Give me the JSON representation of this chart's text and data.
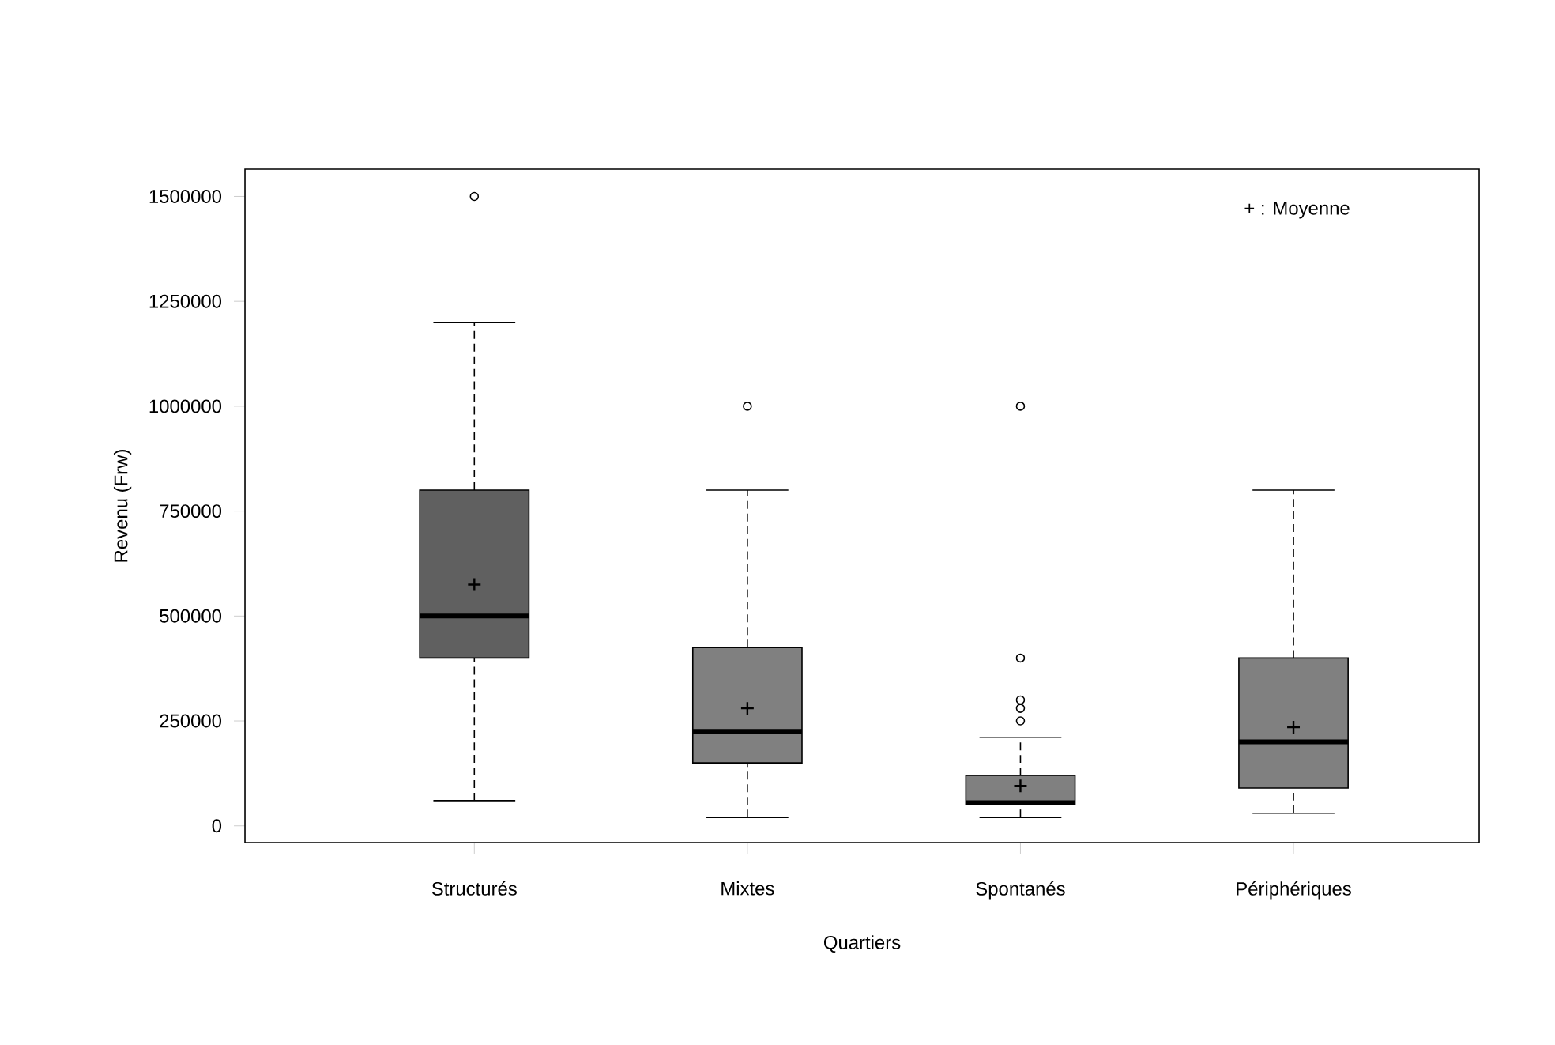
{
  "chart_data": {
    "type": "box",
    "xlabel": "Quartiers",
    "ylabel": "Revenu (Frw)",
    "categories": [
      "Structurés",
      "Mixtes",
      "Spontanés",
      "Périphériques"
    ],
    "colors": [
      "#606060",
      "#808080",
      "#808080",
      "#808080"
    ],
    "boxes": [
      {
        "low": 60000,
        "q1": 400000,
        "median": 500000,
        "q3": 800000,
        "high": 1200000,
        "mean": 575000,
        "outliers": [
          1500000
        ]
      },
      {
        "low": 20000,
        "q1": 150000,
        "median": 225000,
        "q3": 425000,
        "high": 800000,
        "mean": 280000,
        "outliers": [
          1000000
        ]
      },
      {
        "low": 20000,
        "q1": 50000,
        "median": 55000,
        "q3": 120000,
        "high": 210000,
        "mean": 95000,
        "outliers": [
          1000000,
          400000,
          300000,
          280000,
          250000
        ]
      },
      {
        "low": 30000,
        "q1": 90000,
        "median": 200000,
        "q3": 400000,
        "high": 800000,
        "mean": 235000
      }
    ],
    "ylim": [
      -40000,
      1565000
    ],
    "yticks": [
      0,
      250000,
      500000,
      750000,
      1000000,
      1250000,
      1500000
    ],
    "grid": false,
    "marker": "cross",
    "annotations": [
      "+  : Moyenne"
    ]
  }
}
